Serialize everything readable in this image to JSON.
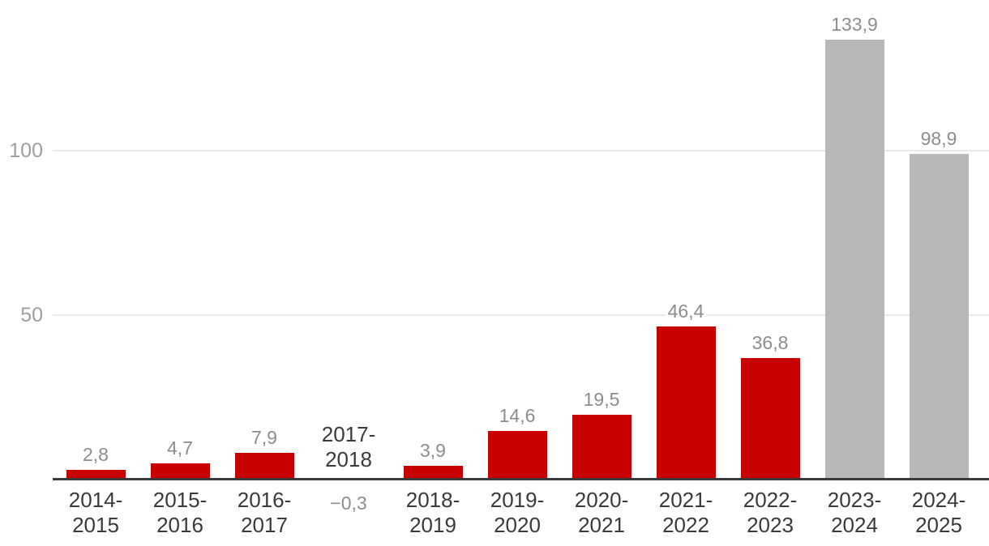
{
  "chart_data": {
    "type": "bar",
    "categories": [
      "2014-2015",
      "2015-2016",
      "2016-2017",
      "2017-2018",
      "2018-2019",
      "2019-2020",
      "2020-2021",
      "2021-2022",
      "2022-2023",
      "2023-2024",
      "2024-2025"
    ],
    "values": [
      2.8,
      4.7,
      7.9,
      -0.3,
      3.9,
      14.6,
      19.5,
      46.4,
      36.8,
      133.9,
      98.9
    ],
    "value_labels": [
      "2,8",
      "4,7",
      "7,9",
      "−0,3",
      "3,9",
      "14,6",
      "19,5",
      "46,4",
      "36,8",
      "133,9",
      "98,9"
    ],
    "bar_colors": [
      "red",
      "red",
      "red",
      "red",
      "red",
      "red",
      "red",
      "red",
      "red",
      "gray",
      "gray"
    ],
    "title": "",
    "xlabel": "",
    "ylabel": "",
    "ylim": [
      0,
      146
    ],
    "yticks": [
      50,
      100
    ],
    "ytick_labels": [
      "50",
      "100"
    ],
    "grid": true,
    "legend_position": "none",
    "decimal_separator": ","
  },
  "colors": {
    "bar_red": "#c90000",
    "bar_gray": "#b8b8b8",
    "value_label": "#8d8d8d",
    "ytick_label": "#9f9f9f",
    "category_label": "#3a3a3a",
    "axis_line": "#3a3a3a",
    "gridline": "#e9e9e9",
    "background": "#ffffff"
  }
}
